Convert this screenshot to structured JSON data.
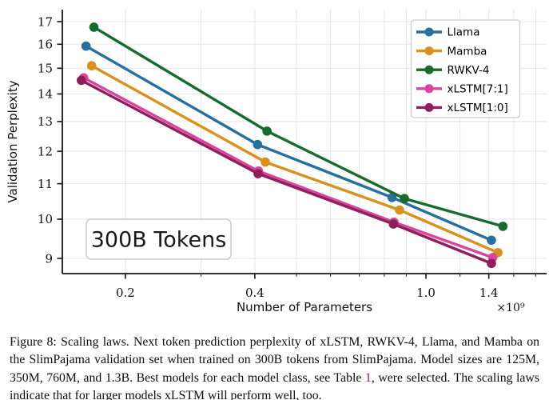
{
  "figure": {
    "caption": {
      "prefix": "Figure 8: Scaling laws. Next token prediction perplexity of xLSTM, RWKV-4, Llama, and Mamba on the SlimPajama validation set when trained on 300B tokens from SlimPajama. Model sizes are 125M, 350M, 760M, and 1.3B. Best models for each model class, see Table ",
      "link_text": "1",
      "suffix": ", were selected. The scaling laws indicate that for larger models xLSTM will perform well, too.",
      "link_color": "#a2105e"
    }
  },
  "chart_data": {
    "type": "line",
    "title": "",
    "xlabel": "Number of Parameters",
    "ylabel": "Validation Perplexity",
    "x_offset_label": "×10⁹",
    "x_scale": "log",
    "y_scale": "log",
    "xlim": [
      0.1427,
      1.908
    ],
    "ylim": [
      8.64,
      17.56
    ],
    "x_ticks_labeled": [
      0.2,
      0.4,
      1.0,
      1.4
    ],
    "x_ticks_minor": [
      0.3,
      0.5,
      0.6,
      0.7,
      0.8,
      0.9,
      1.2,
      1.6,
      1.8
    ],
    "y_ticks": [
      9,
      10,
      11,
      12,
      13,
      14,
      15,
      16,
      17
    ],
    "grid": true,
    "legend_position": "upper right",
    "annotation": "300B Tokens",
    "colors": {
      "grid": "#e5e5e5",
      "spine": "#141414",
      "legend_border": "#cccccc",
      "annotation_border": "#c9c9c9"
    },
    "series": [
      {
        "name": "Llama",
        "color": "#276f9e",
        "x": [
          0.162,
          0.406,
          0.834,
          1.42
        ],
        "y": [
          15.92,
          12.22,
          10.6,
          9.45
        ]
      },
      {
        "name": "Mamba",
        "color": "#d9901d",
        "x": [
          0.167,
          0.423,
          0.868,
          1.47
        ],
        "y": [
          15.1,
          11.66,
          10.25,
          9.14
        ]
      },
      {
        "name": "RWKV-4",
        "color": "#176b2d",
        "x": [
          0.169,
          0.427,
          0.891,
          1.51
        ],
        "y": [
          16.75,
          12.67,
          10.57,
          9.81
        ]
      },
      {
        "name": "xLSTM[7:1]",
        "color": "#d9449c",
        "x": [
          0.16,
          0.408,
          0.843,
          1.43
        ],
        "y": [
          14.62,
          11.38,
          9.92,
          9.02
        ]
      },
      {
        "name": "xLSTM[1:0]",
        "color": "#8c1f5c",
        "x": [
          0.158,
          0.407,
          0.84,
          1.42
        ],
        "y": [
          14.52,
          11.3,
          9.87,
          8.88
        ]
      }
    ]
  }
}
